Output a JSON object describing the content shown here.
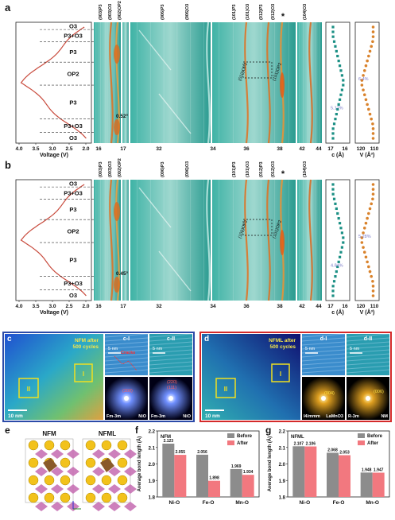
{
  "panel_a": {
    "letter": "a",
    "phases": [
      "O3",
      "P3+O3",
      "P3",
      "OP2",
      "P3",
      "P3+O3",
      "O3"
    ],
    "voltage_axis_label": "Voltage (V)",
    "voltage_ticks": [
      "4.0",
      "3.5",
      "3.0",
      "2.5",
      "2.0"
    ],
    "two_theta_ticks": [
      "16",
      "17",
      "32",
      "34",
      "36",
      "38",
      "42",
      "44"
    ],
    "reflections": [
      "(003)P3",
      "(003)O3",
      "(002)OP2",
      "(006)P3",
      "(006)O3",
      "(101)P3",
      "(101)O3",
      "(012)P3",
      "(012)O3",
      "(104)O3"
    ],
    "inset_labels": [
      "(010)OP2",
      "(101)OP2"
    ],
    "star": "*",
    "shift_annotation": "0.52°",
    "c_axis_label": "c (Å)",
    "c_ticks": [
      "17",
      "16"
    ],
    "v_axis_label": "V (Å³)",
    "v_ticks": [
      "120",
      "110"
    ],
    "c_change": "5.17%",
    "v_change": "6.4%"
  },
  "panel_b": {
    "letter": "b",
    "phases": [
      "O3",
      "P3+O3",
      "P3",
      "OP2",
      "P3",
      "P3+O3",
      "O3"
    ],
    "voltage_axis_label": "Voltage (V)",
    "voltage_ticks": [
      "4.0",
      "3.5",
      "3.0",
      "2.5",
      "2.0"
    ],
    "two_theta_ticks": [
      "16",
      "17",
      "32",
      "34",
      "36",
      "38",
      "42",
      "44"
    ],
    "reflections": [
      "(003)P3",
      "(003)O3",
      "(002)OP2",
      "(006)P3",
      "(006)O3",
      "(101)P3",
      "(101)O3",
      "(012)P3",
      "(012)O3",
      "(104)O3"
    ],
    "inset_labels": [
      "(100)OP2",
      "(101)OP2"
    ],
    "star": "*",
    "shift_annotation": "0.45°",
    "c_axis_label": "c (Å)",
    "c_ticks": [
      "17",
      "16"
    ],
    "v_axis_label": "V (Å³)",
    "v_ticks": [
      "120",
      "110"
    ],
    "c_change": "4.84%",
    "v_change": "5.28%"
  },
  "panel_c": {
    "letter": "c",
    "caption": "NFM after",
    "caption2": "500 cycles",
    "box1": "I",
    "box2": "II",
    "scale": "10 nm",
    "sub1": "c-I",
    "sub2": "c-II",
    "sub_scale": "5 nm",
    "defect_label": "Cracks",
    "fft1_left": "Fm-3m",
    "fft1_right": "NiO",
    "fft1_spot": "(200)",
    "fft2_spot": "(111)",
    "fft2_spot2": "(220)",
    "fft2_left": "Fm-3m",
    "fft2_right": "NiO"
  },
  "panel_d": {
    "letter": "d",
    "caption": "NFML after",
    "caption2": "500 cycles",
    "box1": "I",
    "box2": "II",
    "scale": "10 nm",
    "sub1": "d-I",
    "sub2": "d-II",
    "sub_scale": "5 nm",
    "fft1_left": "I4/mmm",
    "fft1_right": "LaMnO3",
    "fft1_spot": "(004)",
    "fft2_spot": "(006)",
    "fft2_left": "R-3m",
    "fft2_right": "NM"
  },
  "panel_e": {
    "letter": "e",
    "label_left": "NFM",
    "label_right": "NFML"
  },
  "colors": {
    "before": "#8c8c8c",
    "after": "#f2787f",
    "contour_teal": "#2aa89a",
    "voltage_curve": "#c84a3c",
    "c_series": "#1a8f84",
    "v_series": "#d9822b",
    "frame_c": "#2b4aa8",
    "frame_d": "#d42a2a"
  },
  "chart_data": [
    {
      "type": "bar",
      "panel": "f",
      "title": "NFM",
      "ylabel": "Average bond length (Å)",
      "categories": [
        "Ni-O",
        "Fe-O",
        "Mn-O"
      ],
      "series": [
        {
          "name": "Before",
          "values": [
            2.123,
            2.056,
            1.969
          ]
        },
        {
          "name": "After",
          "values": [
            2.055,
            1.898,
            1.934
          ]
        }
      ],
      "ylim": [
        1.8,
        2.2
      ],
      "yticks": [
        "1.8",
        "1.9",
        "2.0",
        "2.1",
        "2.2"
      ],
      "legend": "top-right"
    },
    {
      "type": "bar",
      "panel": "g",
      "title": "NFML",
      "ylabel": "Average bond length (Å)",
      "categories": [
        "Ni-O",
        "Fe-O",
        "Mn-O"
      ],
      "series": [
        {
          "name": "Before",
          "values": [
            2.107,
            2.068,
            1.948
          ]
        },
        {
          "name": "After",
          "values": [
            2.106,
            2.053,
            1.947
          ]
        }
      ],
      "ylim": [
        1.8,
        2.2
      ],
      "yticks": [
        "1.8",
        "1.9",
        "2.0",
        "2.1",
        "2.2"
      ],
      "legend": "top-right"
    }
  ]
}
